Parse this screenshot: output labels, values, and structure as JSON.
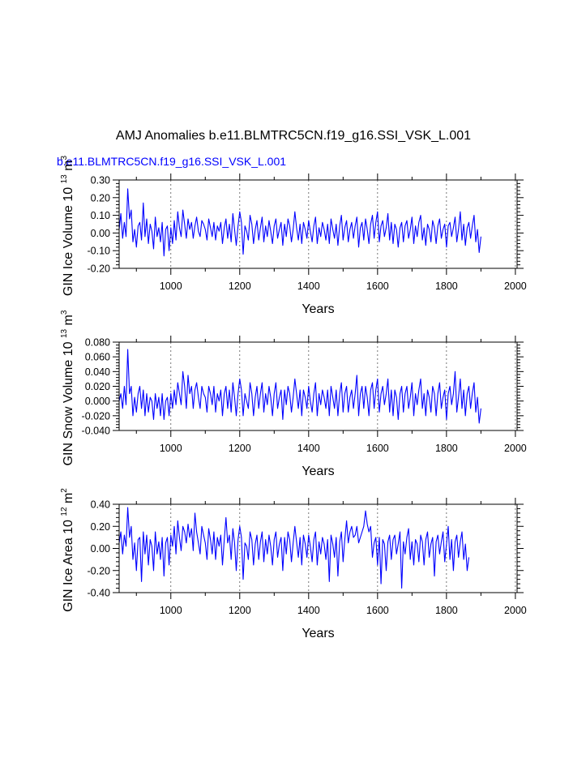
{
  "title": "AMJ Anomalies b.e11.BLMTRC5CN.f19_g16.SSI_VSK_L.001",
  "series_label": "b.e11.BLMTRC5CN.f19_g16.SSI_VSK_L.001",
  "colors": {
    "series": "#0000ff",
    "axis": "#000000",
    "grid": "#555555"
  },
  "chart_data": [
    {
      "type": "line",
      "ylabel": "GIN Ice Volume 10",
      "ylabel_exp1": "13",
      "ylabel_unit": "m",
      "ylabel_exp2": "3",
      "xlabel": "Years",
      "xlim": [
        850,
        2005
      ],
      "ylim": [
        -0.2,
        0.3
      ],
      "xticks": [
        1000,
        1200,
        1400,
        1600,
        1800,
        2000
      ],
      "xtick_labels": [
        "1000",
        "1200",
        "1400",
        "1600",
        "1800",
        "2000"
      ],
      "yticks": [
        -0.2,
        -0.1,
        0.0,
        0.1,
        0.2,
        0.3
      ],
      "ytick_labels": [
        "-0.20",
        "-0.10",
        "0.00",
        "0.10",
        "0.20",
        "0.30"
      ],
      "grid": "vertical dashed at major x ticks",
      "series": [
        {
          "name": "b.e11.BLMTRC5CN.f19_g16.SSI_VSK_L.001",
          "x_start": 850,
          "x_step": 5,
          "values": [
            0.02,
            0.11,
            -0.03,
            0.06,
            -0.02,
            0.25,
            0.08,
            0.13,
            -0.05,
            0.02,
            -0.08,
            0.04,
            0.06,
            -0.04,
            0.17,
            -0.02,
            0.08,
            -0.06,
            0.05,
            0.01,
            -0.09,
            0.09,
            -0.02,
            0.03,
            -0.05,
            0.06,
            -0.13,
            0.02,
            0.04,
            -0.1,
            0.03,
            -0.06,
            0.07,
            -0.04,
            0.12,
            0.03,
            -0.02,
            0.13,
            0.05,
            -0.03,
            0.08,
            0.02,
            0.06,
            -0.03,
            0.04,
            0.09,
            0.01,
            -0.02,
            0.07,
            0.05,
            0.02,
            -0.04,
            0.08,
            0.03,
            -0.02,
            0.06,
            -0.04,
            0.04,
            0.01,
            0.06,
            -0.06,
            0.03,
            0.08,
            -0.03,
            0.05,
            -0.05,
            0.11,
            0.02,
            -0.07,
            0.04,
            0.12,
            0.06,
            -0.12,
            0.04,
            0.01,
            -0.04,
            0.1,
            0.05,
            -0.06,
            0.02,
            0.07,
            -0.04,
            0.03,
            0.09,
            -0.05,
            0.04,
            -0.02,
            0.07,
            0.01,
            -0.06,
            0.04,
            0.08,
            -0.03,
            0.02,
            0.06,
            -0.07,
            0.05,
            -0.02,
            0.08,
            0.04,
            -0.05,
            0.02,
            0.12,
            0.03,
            -0.04,
            0.05,
            -0.06,
            0.06,
            0.02,
            -0.03,
            0.07,
            0.01,
            -0.05,
            0.04,
            0.09,
            -0.06,
            0.03,
            -0.02,
            0.06,
            0.02,
            -0.04,
            0.05,
            -0.06,
            0.08,
            0.02,
            -0.03,
            0.05,
            -0.07,
            0.04,
            0.1,
            -0.04,
            0.03,
            0.07,
            -0.05,
            0.02,
            0.06,
            -0.03,
            0.04,
            0.09,
            -0.08,
            0.03,
            0.06,
            -0.04,
            0.08,
            0.02,
            -0.06,
            0.05,
            0.1,
            -0.03,
            0.06,
            0.12,
            -0.05,
            0.04,
            0.07,
            -0.02,
            0.03,
            0.11,
            -0.04,
            0.06,
            -0.06,
            0.05,
            0.02,
            -0.08,
            0.03,
            0.06,
            -0.05,
            0.04,
            0.07,
            -0.03,
            0.02,
            0.09,
            -0.06,
            0.04,
            -0.02,
            0.06,
            0.1,
            -0.04,
            0.03,
            -0.07,
            0.05,
            0.02,
            -0.05,
            0.07,
            0.03,
            -0.06,
            0.04,
            0.08,
            -0.03,
            0.02,
            0.05,
            -0.08,
            0.04,
            0.06,
            -0.02,
            0.03,
            0.09,
            -0.05,
            0.02,
            0.12,
            -0.04,
            0.05,
            -0.07,
            0.03,
            0.06,
            -0.03,
            0.04,
            0.1,
            -0.05,
            0.02,
            -0.11,
            -0.02
          ]
        }
      ]
    },
    {
      "type": "line",
      "ylabel": "GIN Snow Volume 10",
      "ylabel_exp1": "13",
      "ylabel_unit": "m",
      "ylabel_exp2": "3",
      "xlabel": "Years",
      "xlim": [
        850,
        2005
      ],
      "ylim": [
        -0.04,
        0.08
      ],
      "xticks": [
        1000,
        1200,
        1400,
        1600,
        1800,
        2000
      ],
      "xtick_labels": [
        "1000",
        "1200",
        "1400",
        "1600",
        "1800",
        "2000"
      ],
      "yticks": [
        -0.04,
        -0.02,
        0.0,
        0.02,
        0.04,
        0.06,
        0.08
      ],
      "ytick_labels": [
        "-0.040",
        "-0.020",
        "0.000",
        "0.020",
        "0.040",
        "0.060",
        "0.080"
      ],
      "grid": "vertical dashed at major x ticks",
      "series": [
        {
          "name": "b.e11.BLMTRC5CN.f19_g16.SSI_VSK_L.001",
          "x_start": 850,
          "x_step": 5,
          "values": [
            0.0,
            0.01,
            -0.01,
            0.02,
            -0.005,
            0.07,
            0.01,
            0.02,
            -0.02,
            0.005,
            -0.015,
            0.01,
            0.02,
            -0.01,
            0.015,
            -0.02,
            0.01,
            -0.015,
            0.005,
            0.0,
            -0.025,
            0.01,
            -0.01,
            0.005,
            -0.02,
            0.01,
            -0.025,
            0.0,
            0.005,
            -0.02,
            0.01,
            -0.01,
            0.015,
            -0.005,
            0.025,
            0.01,
            -0.005,
            0.04,
            0.02,
            -0.01,
            0.035,
            0.01,
            0.02,
            -0.01,
            0.015,
            0.025,
            0.005,
            -0.01,
            0.02,
            0.01,
            0.005,
            -0.015,
            0.02,
            0.01,
            -0.005,
            0.02,
            -0.015,
            0.01,
            0.0,
            0.015,
            -0.02,
            0.01,
            0.02,
            -0.01,
            0.015,
            -0.015,
            0.025,
            0.005,
            -0.02,
            0.01,
            0.03,
            0.015,
            -0.02,
            0.01,
            0.0,
            -0.01,
            0.025,
            0.01,
            -0.02,
            0.005,
            0.02,
            -0.01,
            0.01,
            0.025,
            -0.015,
            0.01,
            -0.005,
            0.02,
            0.005,
            -0.02,
            0.01,
            0.025,
            -0.01,
            0.005,
            0.015,
            -0.025,
            0.015,
            -0.005,
            0.02,
            0.01,
            -0.015,
            0.005,
            0.03,
            0.01,
            -0.01,
            0.015,
            -0.02,
            0.015,
            0.005,
            -0.01,
            0.02,
            0.0,
            -0.015,
            0.01,
            0.025,
            -0.02,
            0.01,
            -0.005,
            0.015,
            0.005,
            -0.01,
            0.015,
            -0.02,
            0.02,
            0.005,
            -0.01,
            0.015,
            -0.02,
            0.01,
            0.025,
            -0.015,
            0.01,
            0.02,
            -0.015,
            0.005,
            0.015,
            -0.01,
            0.01,
            0.035,
            -0.02,
            0.01,
            0.02,
            -0.01,
            0.02,
            0.005,
            -0.02,
            0.015,
            0.025,
            -0.01,
            0.015,
            0.03,
            -0.015,
            0.01,
            0.02,
            -0.005,
            0.01,
            0.03,
            -0.015,
            0.015,
            -0.02,
            0.015,
            0.005,
            -0.025,
            0.01,
            0.02,
            -0.015,
            0.01,
            0.02,
            -0.01,
            0.005,
            0.025,
            -0.02,
            0.01,
            -0.005,
            0.015,
            0.03,
            -0.01,
            0.01,
            -0.02,
            0.015,
            0.005,
            -0.015,
            0.02,
            0.01,
            -0.02,
            0.01,
            0.025,
            -0.01,
            0.005,
            0.015,
            -0.025,
            0.01,
            0.02,
            -0.005,
            0.01,
            0.04,
            -0.015,
            0.005,
            0.03,
            -0.01,
            0.015,
            -0.02,
            0.01,
            0.02,
            -0.01,
            0.01,
            0.025,
            -0.015,
            0.005,
            -0.03,
            -0.01
          ]
        }
      ]
    },
    {
      "type": "line",
      "ylabel": "GIN Ice Area 10",
      "ylabel_exp1": "12",
      "ylabel_unit": "m",
      "ylabel_exp2": "2",
      "xlabel": "Years",
      "xlim": [
        850,
        2005
      ],
      "ylim": [
        -0.4,
        0.4
      ],
      "xticks": [
        1000,
        1200,
        1400,
        1600,
        1800,
        2000
      ],
      "xtick_labels": [
        "1000",
        "1200",
        "1400",
        "1600",
        "1800",
        "2000"
      ],
      "yticks": [
        -0.4,
        -0.2,
        0.0,
        0.2,
        0.4
      ],
      "ytick_labels": [
        "-0.40",
        "-0.20",
        "0.00",
        "0.20",
        "0.40"
      ],
      "grid": "vertical dashed at major x ticks",
      "series": [
        {
          "name": "b.e11.BLMTRC5CN.f19_g16.SSI_VSK_L.001",
          "x_start": 850,
          "x_step": 5,
          "values": [
            0.05,
            0.15,
            -0.05,
            0.12,
            0.02,
            0.37,
            0.1,
            0.2,
            -0.1,
            0.05,
            -0.2,
            0.08,
            0.1,
            -0.3,
            0.15,
            -0.05,
            0.12,
            -0.15,
            0.08,
            0.02,
            -0.2,
            0.15,
            -0.05,
            0.06,
            -0.1,
            0.1,
            -0.25,
            0.05,
            0.1,
            -0.15,
            0.12,
            0.02,
            0.2,
            -0.05,
            0.25,
            0.1,
            -0.02,
            0.2,
            0.15,
            0.05,
            0.22,
            0.1,
            0.18,
            -0.02,
            0.32,
            0.15,
            0.05,
            -0.05,
            0.2,
            0.12,
            0.05,
            -0.1,
            0.18,
            0.08,
            -0.05,
            0.15,
            -0.1,
            0.1,
            0.02,
            0.12,
            -0.15,
            0.08,
            0.28,
            0.05,
            0.12,
            -0.1,
            0.18,
            0.05,
            -0.2,
            0.08,
            0.2,
            0.1,
            -0.28,
            0.05,
            0.02,
            -0.1,
            0.15,
            0.08,
            -0.15,
            0.04,
            0.12,
            -0.1,
            0.06,
            0.15,
            -0.12,
            0.08,
            -0.05,
            0.12,
            0.02,
            -0.15,
            0.08,
            0.15,
            -0.08,
            0.04,
            0.1,
            -0.2,
            0.1,
            -0.05,
            0.15,
            0.08,
            -0.12,
            0.05,
            0.2,
            0.06,
            -0.08,
            0.1,
            -0.15,
            0.12,
            0.04,
            -0.08,
            0.12,
            0.02,
            -0.12,
            0.08,
            0.15,
            -0.15,
            0.06,
            -0.05,
            0.1,
            0.04,
            -0.1,
            0.08,
            -0.3,
            0.12,
            0.04,
            -0.08,
            0.1,
            -0.25,
            0.06,
            0.15,
            -0.12,
            0.08,
            0.25,
            0.05,
            0.15,
            0.2,
            0.1,
            0.12,
            0.2,
            0.05,
            0.1,
            0.15,
            0.2,
            0.34,
            0.22,
            0.15,
            0.2,
            -0.08,
            0.05,
            0.1,
            -0.15,
            0.1,
            -0.32,
            0.08,
            0.04,
            -0.2,
            0.06,
            0.12,
            -0.1,
            0.08,
            0.12,
            -0.05,
            0.04,
            0.15,
            -0.36,
            0.06,
            -0.05,
            0.1,
            0.18,
            -0.1,
            0.06,
            -0.15,
            0.08,
            0.04,
            -0.12,
            0.12,
            0.06,
            -0.15,
            0.08,
            0.15,
            -0.08,
            0.04,
            0.1,
            -0.25,
            0.06,
            0.12,
            -0.05,
            0.06,
            0.15,
            -0.12,
            0.04,
            0.2,
            -0.1,
            0.08,
            -0.2,
            0.06,
            0.12,
            -0.08,
            0.06,
            0.15,
            -0.1,
            0.04,
            -0.2,
            -0.08
          ]
        }
      ]
    }
  ]
}
